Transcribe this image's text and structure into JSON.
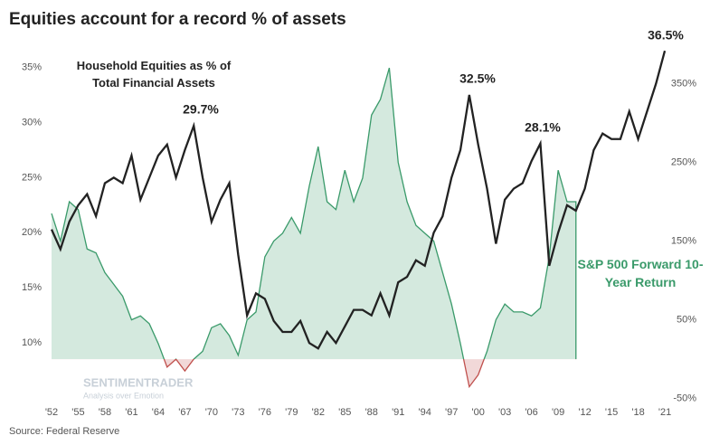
{
  "chart_data": {
    "type": "line",
    "title": "Equities account for a record % of assets",
    "source": "Source: Federal Reserve",
    "watermark": [
      "SENTIMENTRADER",
      "Analysis over Emotion"
    ],
    "annotations": [
      "29.7%",
      "32.5%",
      "28.1%",
      "36.5%"
    ],
    "xlim": [
      1952,
      2021.2
    ],
    "xticks": [
      {
        "value": 1952,
        "label": "'52"
      },
      {
        "value": 1955,
        "label": "'55"
      },
      {
        "value": 1958,
        "label": "'58"
      },
      {
        "value": 1961,
        "label": "'61"
      },
      {
        "value": 1964,
        "label": "'64"
      },
      {
        "value": 1967,
        "label": "'67"
      },
      {
        "value": 1970,
        "label": "'70"
      },
      {
        "value": 1973,
        "label": "'73"
      },
      {
        "value": 1976,
        "label": "'76"
      },
      {
        "value": 1979,
        "label": "'79"
      },
      {
        "value": 1982,
        "label": "'82"
      },
      {
        "value": 1985,
        "label": "'85"
      },
      {
        "value": 1988,
        "label": "'88"
      },
      {
        "value": 1991,
        "label": "'91"
      },
      {
        "value": 1994,
        "label": "'94"
      },
      {
        "value": 1997,
        "label": "'97"
      },
      {
        "value": 2000,
        "label": "'00"
      },
      {
        "value": 2003,
        "label": "'03"
      },
      {
        "value": 2006,
        "label": "'06"
      },
      {
        "value": 2009,
        "label": "'09"
      },
      {
        "value": 2012,
        "label": "'12"
      },
      {
        "value": 2015,
        "label": "'15"
      },
      {
        "value": 2018,
        "label": "'18"
      },
      {
        "value": 2021,
        "label": "'21"
      }
    ],
    "ylim": [
      4.6,
      36.6
    ],
    "yticks": [
      {
        "value": 10,
        "label": "10%"
      },
      {
        "value": 15,
        "label": "15%"
      },
      {
        "value": 20,
        "label": "20%"
      },
      {
        "value": 25,
        "label": "25%"
      },
      {
        "value": 30,
        "label": "30%"
      },
      {
        "value": 35,
        "label": "35%"
      }
    ],
    "y2lim": [
      -55,
      393
    ],
    "y2ticks": [
      {
        "value": -50,
        "label": "-50%"
      },
      {
        "value": 50,
        "label": "50%"
      },
      {
        "value": 150,
        "label": "150%"
      },
      {
        "value": 250,
        "label": "250%"
      },
      {
        "value": 350,
        "label": "350%"
      }
    ],
    "series": [
      {
        "name": "S&P 500 Forward 10-Year Return",
        "axis": "y2",
        "kind": "area",
        "color": "#3a9a6a",
        "negative_color": "#c0504d",
        "x": [
          1952,
          1953,
          1954,
          1955,
          1956,
          1957,
          1958,
          1959,
          1960,
          1961,
          1962,
          1963,
          1964,
          1965,
          1966,
          1967,
          1968,
          1969,
          1970,
          1971,
          1972,
          1973,
          1974,
          1975,
          1976,
          1977,
          1978,
          1979,
          1980,
          1981,
          1982,
          1983,
          1984,
          1985,
          1986,
          1987,
          1988,
          1989,
          1990,
          1991,
          1992,
          1993,
          1994,
          1995,
          1996,
          1997,
          1998,
          1999,
          2000,
          2001,
          2002,
          2003,
          2004,
          2005,
          2006,
          2007,
          2008,
          2009,
          2010,
          2011
        ],
        "values": [
          185,
          150,
          200,
          190,
          140,
          135,
          110,
          95,
          80,
          50,
          55,
          45,
          20,
          -10,
          0,
          -15,
          0,
          10,
          40,
          45,
          30,
          5,
          50,
          60,
          130,
          150,
          160,
          180,
          160,
          220,
          270,
          200,
          190,
          240,
          200,
          230,
          310,
          330,
          370,
          250,
          200,
          170,
          160,
          150,
          110,
          70,
          20,
          -35,
          -20,
          10,
          50,
          70,
          60,
          60,
          55,
          65,
          130,
          240,
          200,
          200
        ]
      },
      {
        "name": "Household Equities as % of Total Financial Assets",
        "axis": "y",
        "kind": "line",
        "color": "#222222",
        "x": [
          1952,
          1953,
          1954,
          1955,
          1956,
          1957,
          1958,
          1959,
          1960,
          1961,
          1962,
          1963,
          1964,
          1965,
          1966,
          1967,
          1968,
          1969,
          1970,
          1971,
          1972,
          1973,
          1974,
          1975,
          1976,
          1977,
          1978,
          1979,
          1980,
          1981,
          1982,
          1983,
          1984,
          1985,
          1986,
          1987,
          1988,
          1989,
          1990,
          1991,
          1992,
          1993,
          1994,
          1995,
          1996,
          1997,
          1998,
          1999,
          2000,
          2001,
          2002,
          2003,
          2004,
          2005,
          2006,
          2007,
          2008,
          2009,
          2010,
          2011,
          2012,
          2013,
          2014,
          2015,
          2016,
          2017,
          2018,
          2019,
          2020,
          2021
        ],
        "values": [
          20.3,
          18.5,
          21,
          22.5,
          23.5,
          21.5,
          24.5,
          25,
          24.5,
          27,
          23,
          25,
          27,
          28,
          25,
          27.5,
          29.7,
          25,
          21,
          23,
          24.5,
          18,
          12.5,
          14.5,
          14,
          12,
          11,
          11,
          12,
          10,
          9.5,
          11,
          10,
          11.5,
          13,
          13,
          12.5,
          14.5,
          12.5,
          15.5,
          16,
          17.5,
          17,
          20,
          21.5,
          25,
          27.5,
          32.5,
          28,
          24,
          19,
          23,
          24,
          24.5,
          26.5,
          28.1,
          17,
          20,
          22.5,
          22,
          24,
          27.5,
          29,
          28.5,
          28.5,
          31,
          28.5,
          31,
          33.5,
          36.5
        ]
      }
    ]
  }
}
